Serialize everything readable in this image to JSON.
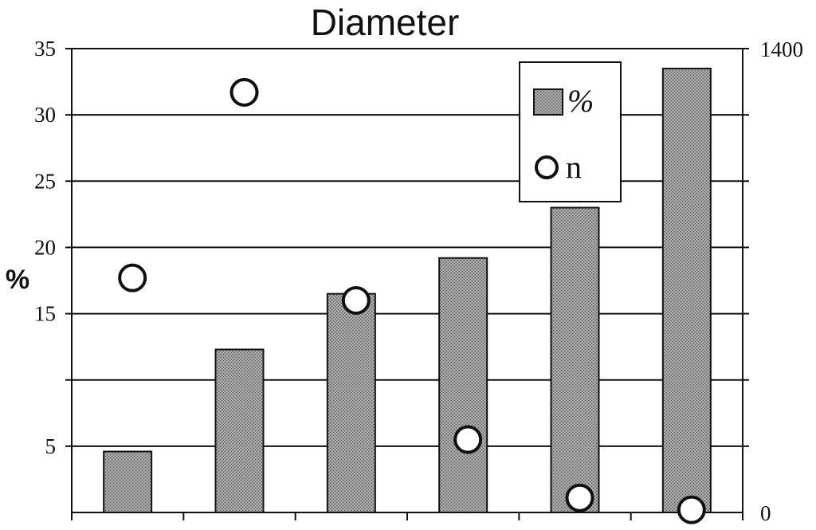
{
  "chart_data": {
    "type": "bar",
    "title": "Diameter",
    "ylabel": "%",
    "y2label": "",
    "categories": [
      "",
      "",
      "",
      "",
      "",
      ""
    ],
    "ylim": [
      0,
      35
    ],
    "y2lim": [
      0,
      1400
    ],
    "y_ticks": [
      {
        "value": 5,
        "label": "5"
      },
      {
        "value": 15,
        "label": "15"
      },
      {
        "value": 20,
        "label": "20"
      },
      {
        "value": 25,
        "label": "25"
      },
      {
        "value": 30,
        "label": "30"
      },
      {
        "value": 35,
        "label": "35"
      }
    ],
    "y_gridlines": [
      5,
      10,
      15,
      20,
      25,
      30,
      35
    ],
    "y2_ticks": [
      {
        "value": 0,
        "label": "0"
      },
      {
        "value": 1400,
        "label": "1400"
      }
    ],
    "grid": true,
    "legend_position": "top-right",
    "series": [
      {
        "name": "%",
        "kind": "bar",
        "axis": "left",
        "color": "#8a8a8a",
        "values": [
          4.6,
          12.3,
          16.5,
          19.2,
          23.0,
          33.5
        ]
      },
      {
        "name": "n",
        "kind": "scatter",
        "axis": "right",
        "marker": "open-circle",
        "values": [
          708,
          1268,
          640,
          220,
          44,
          8
        ]
      }
    ]
  }
}
